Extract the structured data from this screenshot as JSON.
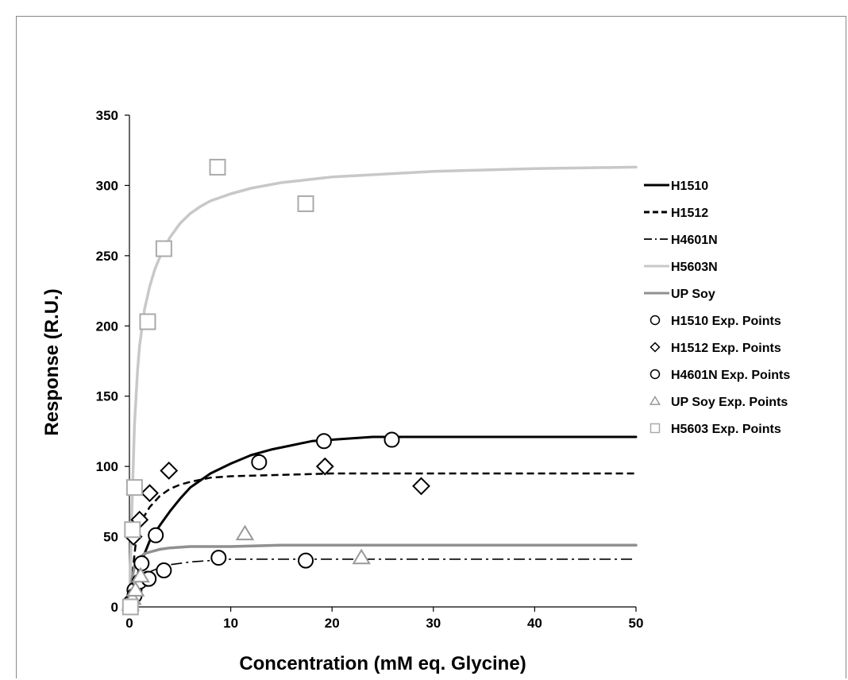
{
  "chart_data": {
    "type": "scatter",
    "title": "",
    "xlabel": "Concentration (mM eq. Glycine)",
    "ylabel": "Response (R.U.)",
    "xlim": [
      0,
      50
    ],
    "ylim": [
      0,
      350
    ],
    "xticks": [
      0,
      10,
      20,
      30,
      40,
      50
    ],
    "yticks": [
      0,
      50,
      100,
      150,
      200,
      250,
      300,
      350
    ],
    "grid": false,
    "legend_position": "right",
    "series": [
      {
        "name": "H1510",
        "kind": "line",
        "style": "solid",
        "color": "#000000",
        "x": [
          0,
          0.3,
          0.7,
          1,
          1.5,
          2,
          3,
          4,
          5,
          6,
          8,
          10,
          12,
          14,
          16,
          18,
          20,
          22,
          24,
          26,
          30,
          40,
          50
        ],
        "y": [
          0,
          8,
          19,
          29,
          38,
          47,
          58,
          68,
          77,
          85,
          95,
          102,
          108,
          112,
          115,
          118,
          119,
          120,
          121,
          121,
          121,
          121,
          121
        ]
      },
      {
        "name": "H1512",
        "kind": "line",
        "style": "dashed",
        "color": "#000000",
        "x": [
          0,
          0.3,
          0.6,
          1,
          1.5,
          2,
          3,
          4,
          5,
          6,
          8,
          10,
          15,
          20,
          30,
          40,
          50
        ],
        "y": [
          0,
          24,
          44,
          57,
          65,
          71,
          79,
          84,
          87,
          89,
          92,
          93,
          94,
          95,
          95,
          95,
          95
        ]
      },
      {
        "name": "H4601N",
        "kind": "line",
        "style": "dashdot",
        "color": "#000000",
        "x": [
          0,
          0.3,
          0.6,
          1,
          1.5,
          2,
          3,
          4,
          6,
          8,
          10,
          15,
          20,
          30,
          40,
          50
        ],
        "y": [
          0,
          9,
          14,
          18,
          22,
          25,
          28,
          30,
          32,
          33,
          34,
          34,
          34,
          34,
          34,
          34
        ]
      },
      {
        "name": "H5603N",
        "kind": "line",
        "style": "solid",
        "color": "#c8c8c8",
        "x": [
          0,
          0.2,
          0.5,
          0.8,
          1,
          1.5,
          2,
          2.5,
          3,
          3.5,
          4,
          5,
          6,
          7,
          8,
          10,
          12,
          15,
          20,
          25,
          30,
          40,
          50
        ],
        "y": [
          0,
          60,
          130,
          168,
          186,
          212,
          228,
          240,
          249,
          256,
          263,
          273,
          280,
          285,
          289,
          294,
          298,
          302,
          306,
          308,
          310,
          312,
          313
        ]
      },
      {
        "name": "UP Soy",
        "kind": "line",
        "style": "solid",
        "color": "#909090",
        "x": [
          0,
          0.2,
          0.5,
          1,
          1.5,
          2,
          3,
          4,
          6,
          8,
          10,
          15,
          20,
          30,
          40,
          50
        ],
        "y": [
          0,
          18,
          29,
          35,
          38,
          39,
          41,
          42,
          43,
          43,
          43,
          44,
          44,
          44,
          44,
          44
        ]
      },
      {
        "name": "H1510 Exp. Points",
        "kind": "points",
        "marker": "circle",
        "color": "#000000",
        "x": [
          0.1,
          0.5,
          1.2,
          1.8,
          2.6,
          12.8,
          19.2,
          25.9
        ],
        "y": [
          2,
          12,
          31,
          20,
          51,
          103,
          118,
          119
        ]
      },
      {
        "name": "H1512 Exp. Points",
        "kind": "points",
        "marker": "diamond",
        "color": "#000000",
        "x": [
          0.2,
          0.4,
          1.0,
          2.0,
          3.9,
          19.3,
          28.8
        ],
        "y": [
          5,
          50,
          62,
          81,
          97,
          100,
          86
        ]
      },
      {
        "name": "H4601N Exp. Points",
        "kind": "points",
        "marker": "circle",
        "color": "#000000",
        "x": [
          0.1,
          0.5,
          1.0,
          1.9,
          3.4,
          8.8,
          17.4
        ],
        "y": [
          1,
          8,
          18,
          20,
          26,
          35,
          33
        ]
      },
      {
        "name": "UP Soy Exp. Points",
        "kind": "points",
        "marker": "triangle",
        "color": "#999999",
        "x": [
          0.1,
          0.3,
          0.6,
          1.1,
          11.4,
          22.9
        ],
        "y": [
          2,
          6,
          12,
          22,
          52,
          35
        ]
      },
      {
        "name": "H5603 Exp. Points",
        "kind": "points",
        "marker": "square",
        "color": "#aaaaaa",
        "x": [
          0.1,
          0.3,
          0.5,
          1.8,
          3.4,
          8.7,
          17.4
        ],
        "y": [
          0,
          55,
          85,
          203,
          255,
          313,
          287
        ]
      }
    ]
  }
}
